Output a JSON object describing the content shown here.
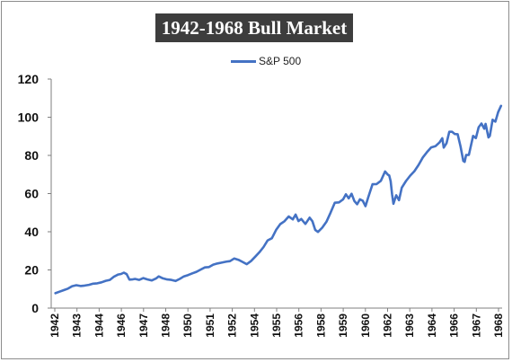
{
  "chart_data": {
    "type": "line",
    "title": "1942-1968 Bull Market",
    "xlabel": "",
    "ylabel": "",
    "ylim": [
      0,
      120
    ],
    "yticks": [
      0,
      20,
      40,
      60,
      80,
      100,
      120
    ],
    "grid": false,
    "legend_position": "top-center",
    "x_tick_labels": [
      "1942",
      "1943",
      "1944",
      "1946",
      "1947",
      "1948",
      "1950",
      "1951",
      "1952",
      "1954",
      "1955",
      "1956",
      "1958",
      "1959",
      "1960",
      "1962",
      "1963",
      "1964",
      "1966",
      "1967",
      "1968"
    ],
    "series": [
      {
        "name": "S&P 500",
        "color": "#4472c4",
        "points": [
          [
            "1942-04",
            7.8
          ],
          [
            "1942-07",
            8.6
          ],
          [
            "1942-10",
            9.4
          ],
          [
            "1943-01",
            10.2
          ],
          [
            "1943-04",
            11.5
          ],
          [
            "1943-07",
            12.0
          ],
          [
            "1943-10",
            11.6
          ],
          [
            "1944-01",
            11.8
          ],
          [
            "1944-04",
            12.2
          ],
          [
            "1944-07",
            12.8
          ],
          [
            "1944-10",
            13.0
          ],
          [
            "1945-01",
            13.5
          ],
          [
            "1945-04",
            14.3
          ],
          [
            "1945-07",
            14.8
          ],
          [
            "1945-10",
            16.5
          ],
          [
            "1946-01",
            17.6
          ],
          [
            "1946-03",
            17.9
          ],
          [
            "1946-05",
            18.6
          ],
          [
            "1946-07",
            17.8
          ],
          [
            "1946-09",
            14.9
          ],
          [
            "1946-11",
            15.0
          ],
          [
            "1947-01",
            15.3
          ],
          [
            "1947-04",
            14.8
          ],
          [
            "1947-07",
            15.7
          ],
          [
            "1947-10",
            15.0
          ],
          [
            "1948-01",
            14.5
          ],
          [
            "1948-04",
            15.5
          ],
          [
            "1948-06",
            16.6
          ],
          [
            "1948-09",
            15.6
          ],
          [
            "1948-12",
            15.0
          ],
          [
            "1949-03",
            14.8
          ],
          [
            "1949-06",
            14.2
          ],
          [
            "1949-09",
            15.3
          ],
          [
            "1949-12",
            16.6
          ],
          [
            "1950-03",
            17.3
          ],
          [
            "1950-06",
            18.2
          ],
          [
            "1950-09",
            19.0
          ],
          [
            "1950-12",
            20.2
          ],
          [
            "1951-03",
            21.3
          ],
          [
            "1951-06",
            21.5
          ],
          [
            "1951-09",
            22.8
          ],
          [
            "1951-12",
            23.4
          ],
          [
            "1952-03",
            23.8
          ],
          [
            "1952-06",
            24.3
          ],
          [
            "1952-09",
            24.6
          ],
          [
            "1952-12",
            26.0
          ],
          [
            "1953-03",
            25.3
          ],
          [
            "1953-06",
            24.2
          ],
          [
            "1953-09",
            23.0
          ],
          [
            "1953-12",
            24.6
          ],
          [
            "1954-03",
            26.9
          ],
          [
            "1954-06",
            29.2
          ],
          [
            "1954-09",
            32.0
          ],
          [
            "1954-12",
            35.5
          ],
          [
            "1955-03",
            36.6
          ],
          [
            "1955-06",
            41.0
          ],
          [
            "1955-09",
            44.0
          ],
          [
            "1955-12",
            45.5
          ],
          [
            "1956-03",
            48.0
          ],
          [
            "1956-06",
            46.5
          ],
          [
            "1956-08",
            49.0
          ],
          [
            "1956-10",
            45.6
          ],
          [
            "1956-12",
            46.7
          ],
          [
            "1957-03",
            44.1
          ],
          [
            "1957-06",
            47.4
          ],
          [
            "1957-08",
            45.5
          ],
          [
            "1957-10",
            41.0
          ],
          [
            "1957-12",
            39.9
          ],
          [
            "1958-03",
            42.1
          ],
          [
            "1958-06",
            45.2
          ],
          [
            "1958-09",
            50.0
          ],
          [
            "1958-12",
            55.2
          ],
          [
            "1959-03",
            55.4
          ],
          [
            "1959-06",
            57.0
          ],
          [
            "1959-08",
            59.6
          ],
          [
            "1959-10",
            57.5
          ],
          [
            "1959-12",
            59.9
          ],
          [
            "1960-02",
            56.1
          ],
          [
            "1960-04",
            54.4
          ],
          [
            "1960-06",
            57.0
          ],
          [
            "1960-08",
            56.3
          ],
          [
            "1960-10",
            53.4
          ],
          [
            "1960-12",
            58.1
          ],
          [
            "1961-03",
            64.9
          ],
          [
            "1961-06",
            65.0
          ],
          [
            "1961-09",
            66.7
          ],
          [
            "1961-12",
            71.6
          ],
          [
            "1962-02",
            69.9
          ],
          [
            "1962-03",
            69.5
          ],
          [
            "1962-04",
            66.5
          ],
          [
            "1962-05",
            59.6
          ],
          [
            "1962-06",
            54.7
          ],
          [
            "1962-08",
            59.1
          ],
          [
            "1962-10",
            56.5
          ],
          [
            "1962-12",
            63.1
          ],
          [
            "1963-03",
            66.6
          ],
          [
            "1963-06",
            69.4
          ],
          [
            "1963-09",
            71.7
          ],
          [
            "1963-12",
            75.0
          ],
          [
            "1964-03",
            78.9
          ],
          [
            "1964-06",
            81.7
          ],
          [
            "1964-09",
            84.2
          ],
          [
            "1964-12",
            84.8
          ],
          [
            "1965-03",
            86.8
          ],
          [
            "1965-05",
            89.0
          ],
          [
            "1965-06",
            84.1
          ],
          [
            "1965-08",
            86.4
          ],
          [
            "1965-10",
            92.4
          ],
          [
            "1965-12",
            92.4
          ],
          [
            "1966-02",
            91.2
          ],
          [
            "1966-04",
            91.1
          ],
          [
            "1966-06",
            84.7
          ],
          [
            "1966-08",
            77.1
          ],
          [
            "1966-09",
            76.6
          ],
          [
            "1966-10",
            80.2
          ],
          [
            "1966-12",
            80.3
          ],
          [
            "1967-03",
            90.2
          ],
          [
            "1967-05",
            89.1
          ],
          [
            "1967-07",
            94.8
          ],
          [
            "1967-09",
            96.7
          ],
          [
            "1967-11",
            94.0
          ],
          [
            "1967-12",
            96.5
          ],
          [
            "1968-02",
            89.4
          ],
          [
            "1968-03",
            90.2
          ],
          [
            "1968-05",
            98.7
          ],
          [
            "1968-07",
            97.7
          ],
          [
            "1968-09",
            102.7
          ],
          [
            "1968-11",
            106.0
          ]
        ]
      }
    ]
  }
}
